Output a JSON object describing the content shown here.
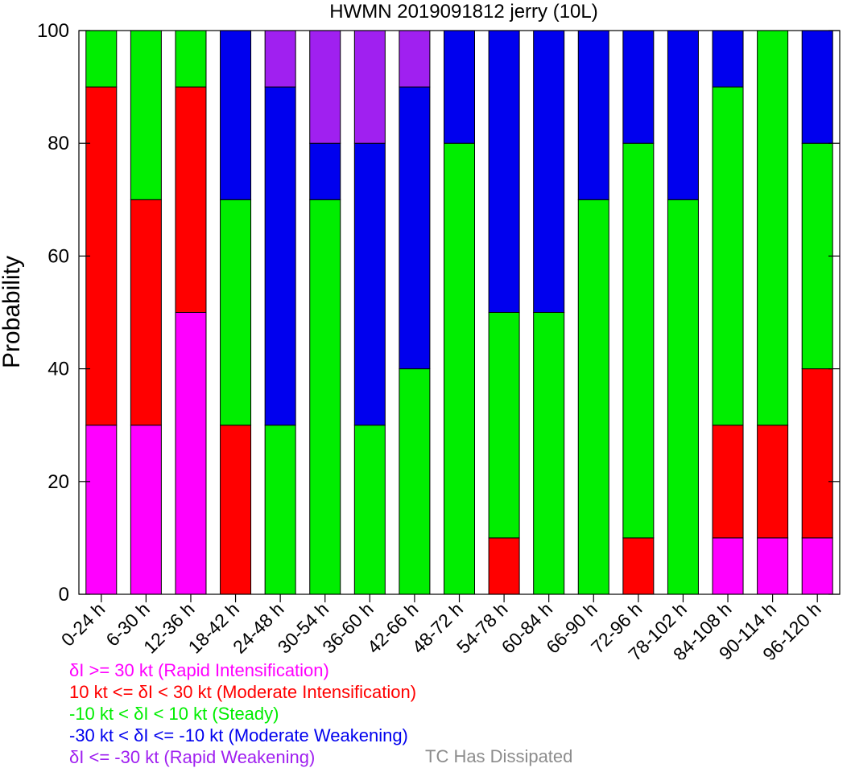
{
  "chart_data": {
    "type": "bar",
    "stacked": true,
    "title": "HWMN 2019091812 jerry (10L)",
    "ylabel": "Probability",
    "ylim": [
      0,
      100
    ],
    "yticks": [
      0,
      20,
      40,
      60,
      80,
      100
    ],
    "categories": [
      "0-24 h",
      "6-30 h",
      "12-36 h",
      "18-42 h",
      "24-48 h",
      "30-54 h",
      "36-60 h",
      "42-66 h",
      "48-72 h",
      "54-78 h",
      "60-84 h",
      "66-90 h",
      "72-96 h",
      "78-102 h",
      "84-108 h",
      "90-114 h",
      "96-120 h"
    ],
    "series": [
      {
        "name": "δI >= 30 kt (Rapid Intensification)",
        "color": "#ff00ff",
        "values": [
          30,
          30,
          50,
          0,
          0,
          0,
          0,
          0,
          0,
          0,
          0,
          0,
          0,
          0,
          10,
          10,
          10
        ]
      },
      {
        "name": "10 kt <= δI < 30 kt (Moderate Intensification)",
        "color": "#ff0000",
        "values": [
          60,
          40,
          40,
          30,
          0,
          0,
          0,
          0,
          0,
          10,
          0,
          0,
          10,
          0,
          20,
          20,
          30
        ]
      },
      {
        "name": "-10 kt < δI < 10 kt (Steady)",
        "color": "#00ee00",
        "values": [
          10,
          30,
          10,
          40,
          30,
          70,
          30,
          40,
          80,
          40,
          50,
          70,
          70,
          70,
          60,
          70,
          40
        ]
      },
      {
        "name": "-30 kt < δI <= -10 kt (Moderate Weakening)",
        "color": "#0000ee",
        "values": [
          0,
          0,
          0,
          30,
          60,
          10,
          50,
          50,
          20,
          50,
          50,
          30,
          20,
          30,
          10,
          0,
          20
        ]
      },
      {
        "name": "δI <= -30 kt (Rapid Weakening)",
        "color": "#a020f0",
        "values": [
          0,
          0,
          0,
          0,
          10,
          20,
          20,
          10,
          0,
          0,
          0,
          0,
          0,
          0,
          0,
          0,
          0
        ]
      }
    ],
    "extra_legend": {
      "name": "TC Has Dissipated",
      "color": "#8c8c8c"
    }
  }
}
